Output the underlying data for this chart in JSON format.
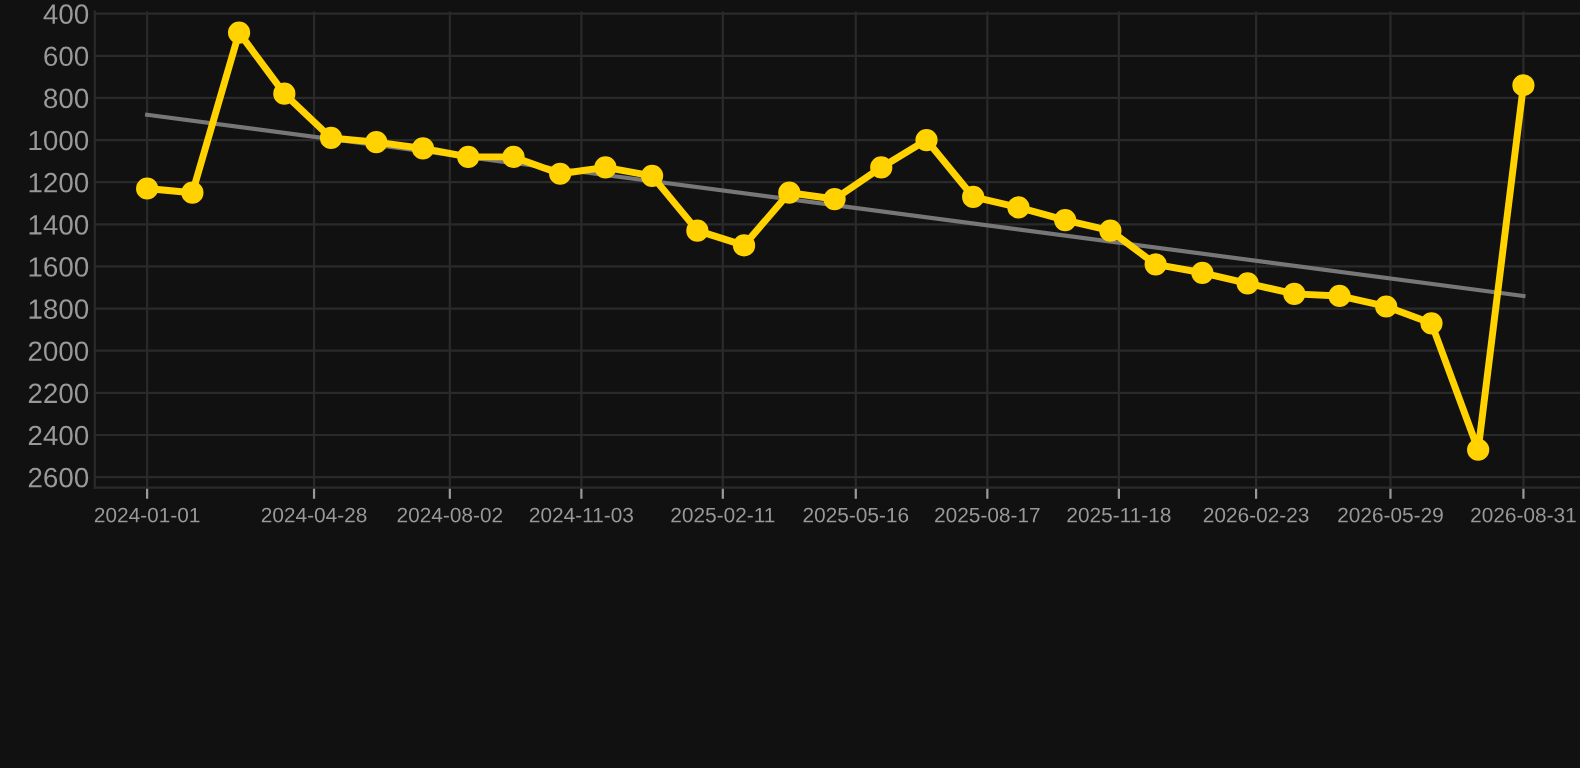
{
  "chart_data": {
    "type": "line",
    "x": [
      "2024-01-01",
      "2024-02-02",
      "2024-03-06",
      "2024-04-07",
      "2024-05-10",
      "2024-06-11",
      "2024-07-14",
      "2024-08-15",
      "2024-09-16",
      "2024-10-19",
      "2024-11-20",
      "2024-12-23",
      "2025-01-24",
      "2025-02-26",
      "2025-03-30",
      "2025-05-01",
      "2025-06-03",
      "2025-07-05",
      "2025-08-07",
      "2025-09-08",
      "2025-10-11",
      "2025-11-12",
      "2025-12-14",
      "2026-01-16",
      "2026-02-17",
      "2026-03-22",
      "2026-04-23",
      "2026-05-26",
      "2026-06-27",
      "2026-07-30",
      "2026-08-31"
    ],
    "series": [
      {
        "color": "#ffd200",
        "marker": "circle",
        "values": [
          1230,
          1250,
          490,
          780,
          990,
          1010,
          1040,
          1080,
          1080,
          1160,
          1130,
          1170,
          1430,
          1500,
          1250,
          1280,
          1130,
          1000,
          1270,
          1320,
          1380,
          1430,
          1590,
          1630,
          1680,
          1730,
          1740,
          1790,
          1870,
          2470,
          740
        ]
      },
      {
        "type": "line",
        "color": "#777777",
        "marker": "none",
        "x": [
          "2024-01-01",
          "2026-08-31"
        ],
        "values": [
          880,
          1740
        ]
      }
    ],
    "ylim": [
      2650,
      390
    ],
    "yticks": [
      400,
      600,
      800,
      1000,
      1200,
      1400,
      1600,
      1800,
      2000,
      2200,
      2400,
      2600
    ],
    "xlim": [
      "2023-11-25",
      "2026-10-10"
    ],
    "xticks": [
      {
        "value": "2024-01-01",
        "label": "2024-01-01"
      },
      {
        "value": "2024-04-28",
        "label": "2024-04-28"
      },
      {
        "value": "2024-08-02",
        "label": "2024-08-02"
      },
      {
        "value": "2024-11-03",
        "label": "2024-11-03"
      },
      {
        "value": "2025-02-11",
        "label": "2025-02-11"
      },
      {
        "value": "2025-05-16",
        "label": "2025-05-16"
      },
      {
        "value": "2025-08-17",
        "label": "2025-08-17"
      },
      {
        "value": "2025-11-18",
        "label": "2025-11-18"
      },
      {
        "value": "2026-02-23",
        "label": "2026-02-23"
      },
      {
        "value": "2026-05-29",
        "label": "2026-05-29"
      },
      {
        "value": "2026-08-31",
        "label": "2026-08-31"
      }
    ],
    "grid": true,
    "line_style": "solid"
  }
}
